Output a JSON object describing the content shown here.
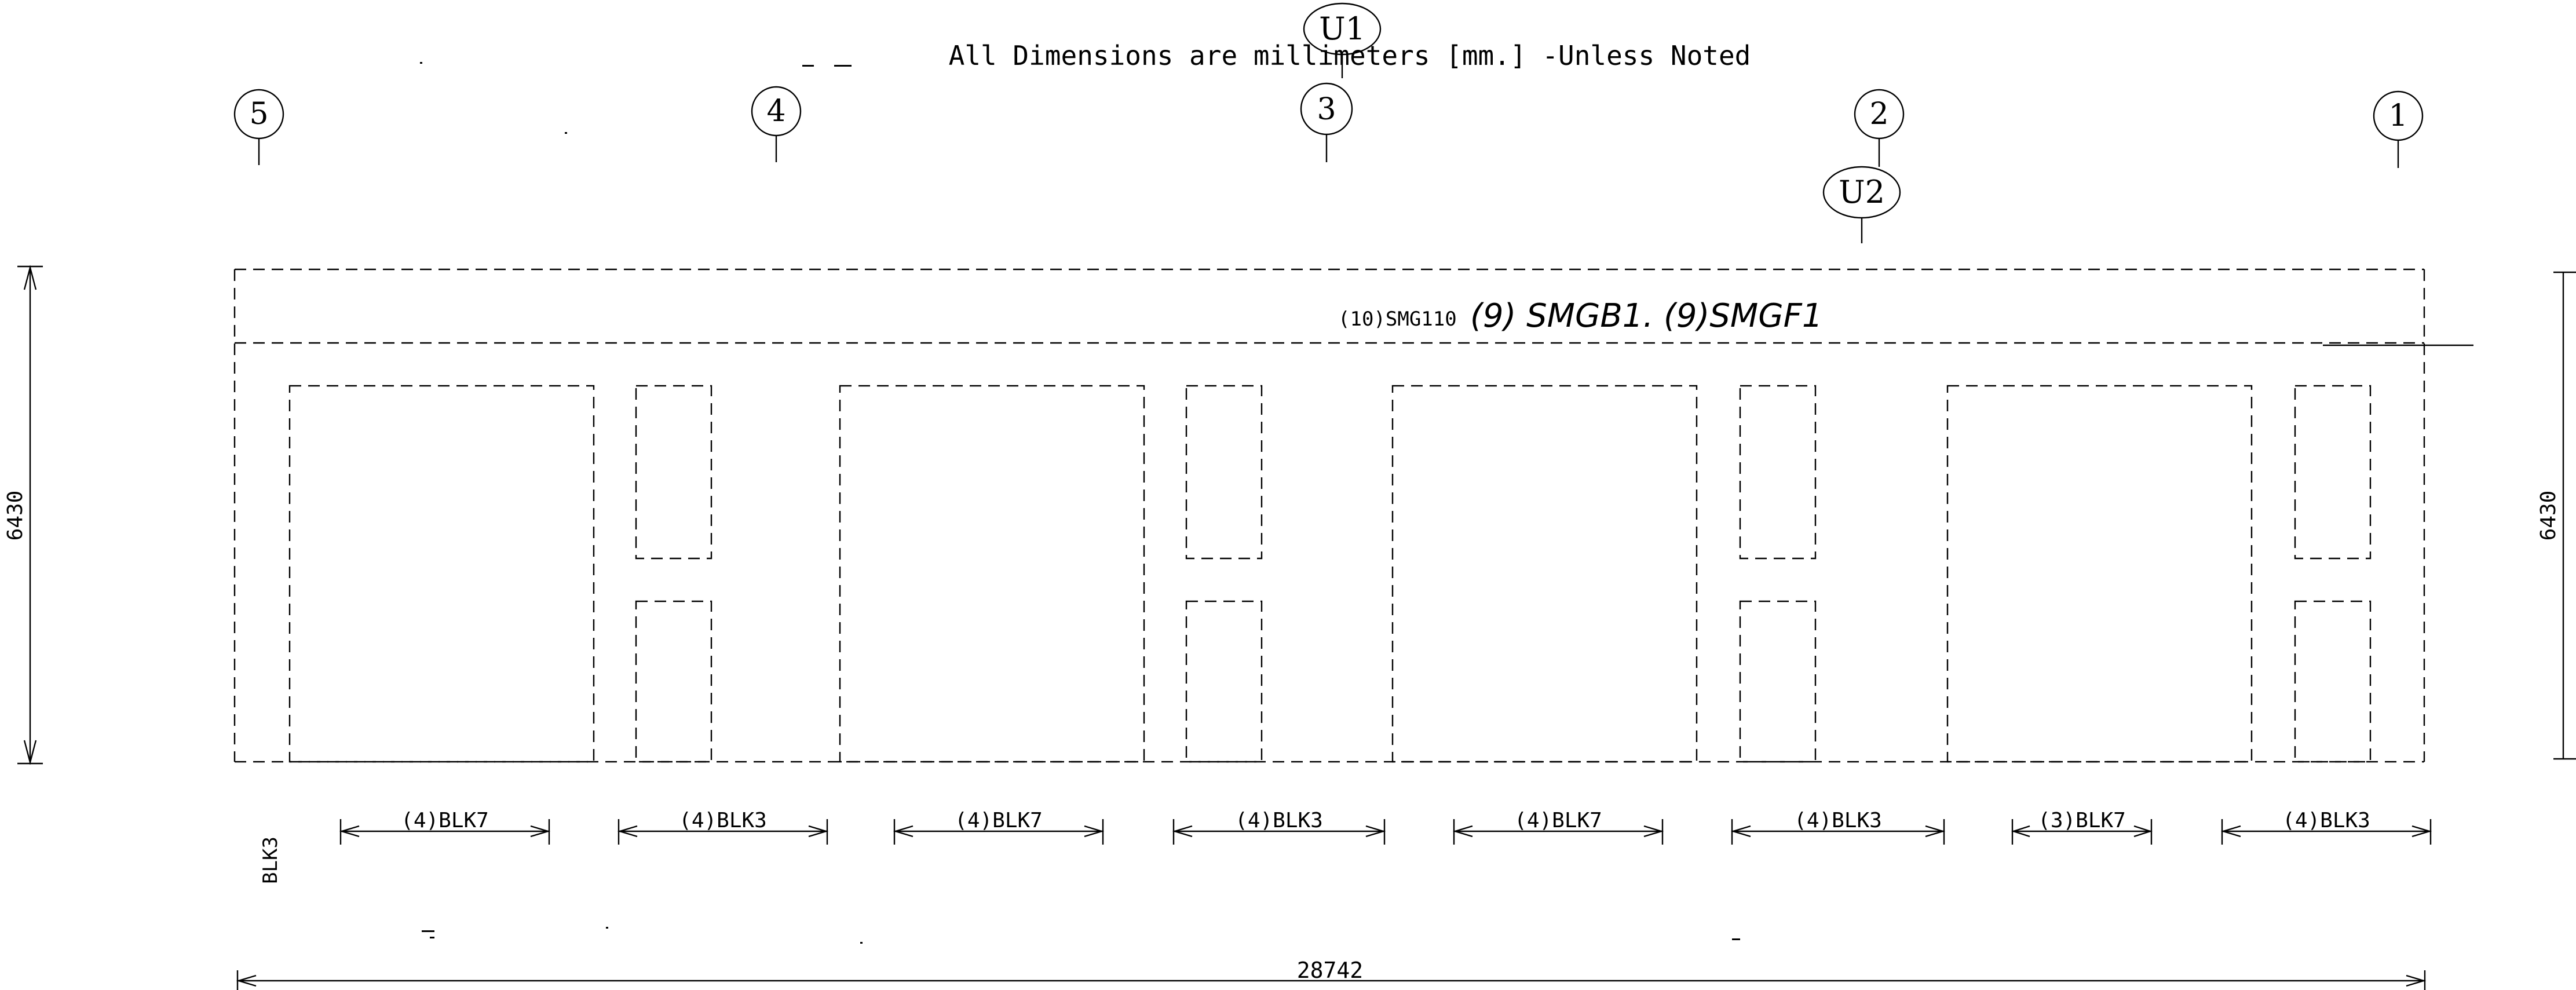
{
  "note": "All Dimensions are millimeters [mm.] -Unless Noted",
  "grid_bubbles": {
    "col_5": "5",
    "col_4": "4",
    "col_3": "3",
    "col_2": "2",
    "col_1": "1",
    "u1": "U1",
    "u2": "U2"
  },
  "beam": {
    "printed": "(10)SMG110",
    "handwritten": "(9) SMGB1. (9)SMGF1"
  },
  "heights": {
    "left": "6430",
    "right": "6430"
  },
  "panels": {
    "vertical": "BLK3",
    "p1": "(4)BLK7",
    "p2": "(4)BLK3",
    "p3": "(4)BLK7",
    "p4": "(4)BLK3",
    "p5": "(4)BLK7",
    "p6": "(4)BLK3",
    "p7": "(3)BLK7",
    "p8": "(4)BLK3"
  },
  "overall_length": "28742"
}
